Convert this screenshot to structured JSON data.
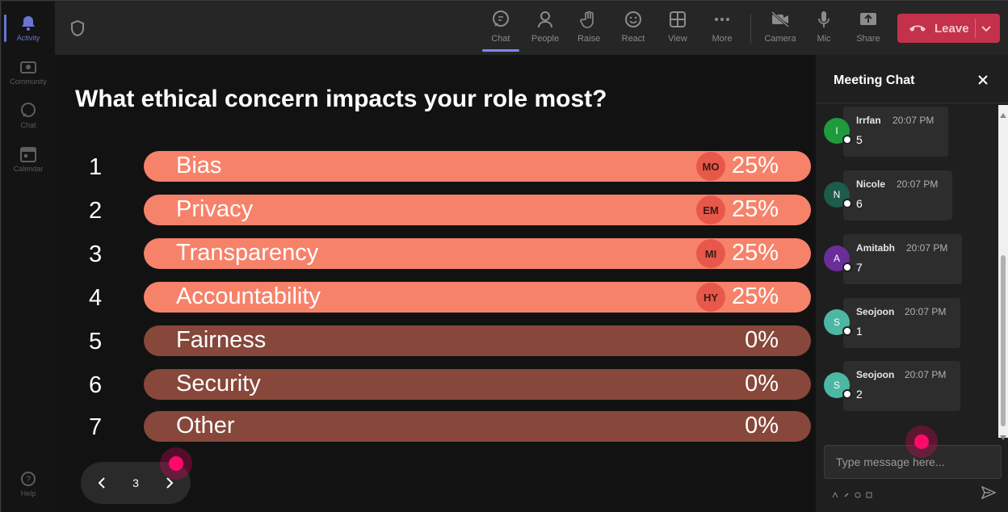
{
  "rail": {
    "items": [
      {
        "label": "Activity",
        "icon": "bell-icon",
        "active": true
      },
      {
        "label": "Community",
        "icon": "community-icon",
        "active": false
      },
      {
        "label": "Chat",
        "icon": "chat-icon",
        "active": false
      },
      {
        "label": "Calendar",
        "icon": "calendar-icon",
        "active": false
      }
    ],
    "help_label": "Help"
  },
  "toolbar": {
    "buttons": [
      {
        "label": "Chat",
        "icon": "chat-icon",
        "active": true
      },
      {
        "label": "People",
        "icon": "people-icon"
      },
      {
        "label": "Raise",
        "icon": "raise-hand-icon"
      },
      {
        "label": "React",
        "icon": "smiley-icon"
      },
      {
        "label": "View",
        "icon": "grid-icon"
      },
      {
        "label": "More",
        "icon": "more-icon"
      },
      {
        "label": "Camera",
        "icon": "camera-off-icon"
      },
      {
        "label": "Mic",
        "icon": "mic-icon"
      },
      {
        "label": "Share",
        "icon": "share-icon"
      }
    ],
    "leave_label": "Leave",
    "leave_color": "#c4314b"
  },
  "poll": {
    "question": "What ethical concern impacts your role most?",
    "accent_color": "#f7826a",
    "muted_color": "#87473a",
    "options": [
      {
        "num": "1",
        "label": "Bias",
        "percent": "25%",
        "voter": "MO"
      },
      {
        "num": "2",
        "label": "Privacy",
        "percent": "25%",
        "voter": "EM"
      },
      {
        "num": "3",
        "label": "Transparency",
        "percent": "25%",
        "voter": "MI"
      },
      {
        "num": "4",
        "label": "Accountability",
        "percent": "25%",
        "voter": "HY"
      },
      {
        "num": "5",
        "label": "Fairness",
        "percent": "0%",
        "voter": ""
      },
      {
        "num": "6",
        "label": "Security",
        "percent": "0%",
        "voter": ""
      },
      {
        "num": "7",
        "label": "Other",
        "percent": "0%",
        "voter": ""
      }
    ],
    "page": "3"
  },
  "chat": {
    "title": "Meeting Chat",
    "messages": [
      {
        "initial": "I",
        "name": "Irrfan",
        "time": "20:07 PM",
        "text": "5",
        "color": "#1e9b3c"
      },
      {
        "initial": "N",
        "name": "Nicole",
        "time": "20:07 PM",
        "text": "6",
        "color": "#1d5b4a"
      },
      {
        "initial": "A",
        "name": "Amitabh",
        "time": "20:07 PM",
        "text": "7",
        "color": "#6a2d9a"
      },
      {
        "initial": "S",
        "name": "Seojoon",
        "time": "20:07 PM",
        "text": "1",
        "color": "#4cb8a3"
      },
      {
        "initial": "S",
        "name": "Seojoon",
        "time": "20:07 PM",
        "text": "2",
        "color": "#4cb8a3"
      }
    ],
    "input_placeholder": "Type message here..."
  }
}
